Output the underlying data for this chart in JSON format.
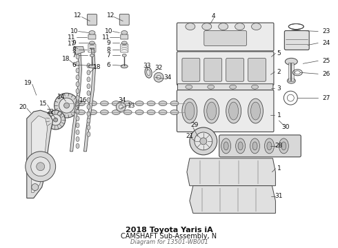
{
  "title": "2018 Toyota Yaris iA",
  "subtitle": "CAMSHAFT Sub-Assembly, N",
  "part_number": "Diagram for 13501-WB001",
  "bg_color": "#ffffff",
  "line_color": "#444444",
  "text_color": "#111111",
  "label_fontsize": 6.5,
  "title_fontsize": 8,
  "fig_width": 4.9,
  "fig_height": 3.6,
  "dpi": 100
}
